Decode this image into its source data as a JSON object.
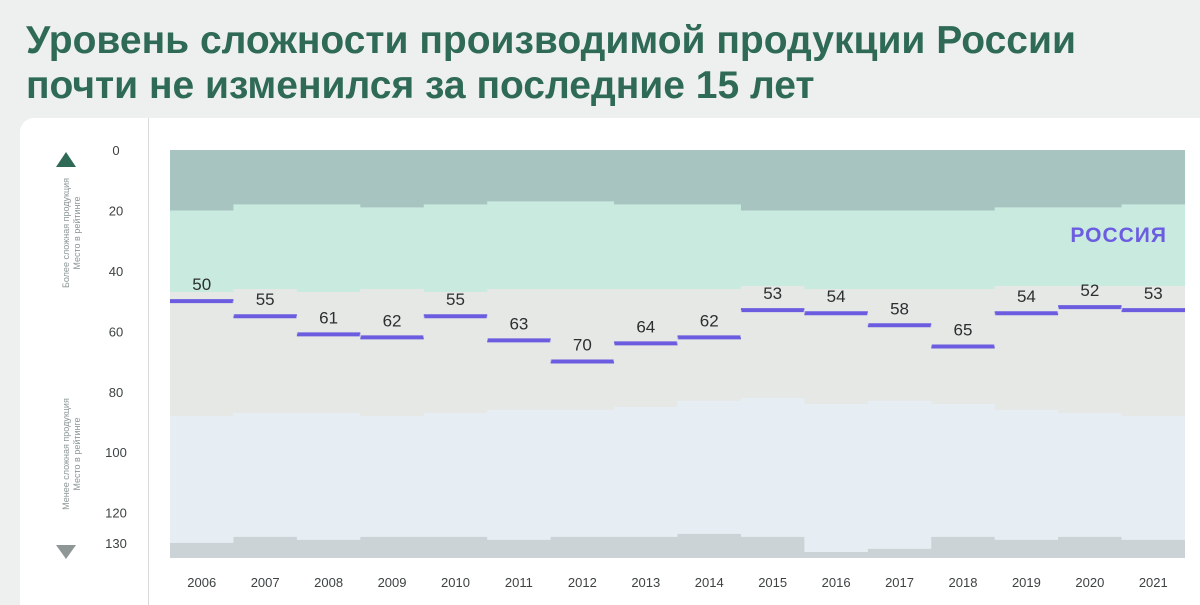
{
  "title": {
    "line1": "Уровень сложности производимой продукции России",
    "line2": "почти не изменился за последние 15 лет"
  },
  "side_labels": {
    "upper_line1": "Более сложная продукция",
    "upper_line2": "Место в рейтинге",
    "lower_line1": "Менее сложная продукция",
    "lower_line2": "Место в рейтинге"
  },
  "colors": {
    "title": "#2f6a57",
    "russia_line": "#6b5ce0",
    "russia_label": "#6b5ce0",
    "band_top": "#a7c4c0",
    "band_mint": "#c8eadf",
    "band_grey": "#e6e8e6",
    "band_light_blue": "#e6eef4",
    "band_bottom": "#ccd3d7",
    "arrow": "#2f6a57",
    "arrow_down": "#8f9696"
  },
  "chart_data": {
    "type": "line",
    "step": true,
    "x": [
      "2006",
      "2007",
      "2008",
      "2009",
      "2010",
      "2011",
      "2012",
      "2013",
      "2014",
      "2015",
      "2016",
      "2017",
      "2018",
      "2019",
      "2020",
      "2021"
    ],
    "series": [
      {
        "name": "РОССИЯ",
        "values": [
          50,
          55,
          61,
          62,
          55,
          63,
          70,
          64,
          62,
          53,
          54,
          58,
          65,
          54,
          52,
          53
        ]
      }
    ],
    "data_labels": [
      "50",
      "55",
      "61",
      "62",
      "55",
      "63",
      "70",
      "64",
      "62",
      "53",
      "54",
      "58",
      "65",
      "54",
      "52",
      "53"
    ],
    "y_axis": {
      "reversed": true,
      "ticks": [
        0,
        20,
        40,
        60,
        80,
        100,
        120,
        130
      ],
      "range": [
        0,
        135
      ]
    },
    "bands": [
      {
        "name": "top",
        "color_key": "band_top",
        "lower": [
          20,
          18,
          18,
          19,
          18,
          17,
          17,
          18,
          18,
          20,
          20,
          20,
          20,
          19,
          19,
          18
        ]
      },
      {
        "name": "mint",
        "color_key": "band_mint",
        "lower": [
          47,
          46,
          47,
          46,
          47,
          46,
          46,
          46,
          46,
          45,
          46,
          46,
          46,
          45,
          45,
          45
        ]
      },
      {
        "name": "grey",
        "color_key": "band_grey",
        "lower": [
          88,
          87,
          87,
          88,
          87,
          86,
          86,
          85,
          83,
          82,
          84,
          83,
          84,
          86,
          87,
          88
        ]
      },
      {
        "name": "light_blue",
        "color_key": "band_light_blue",
        "lower": [
          130,
          128,
          129,
          128,
          128,
          129,
          128,
          128,
          127,
          128,
          133,
          132,
          128,
          129,
          128,
          129
        ]
      }
    ],
    "grid": false
  }
}
